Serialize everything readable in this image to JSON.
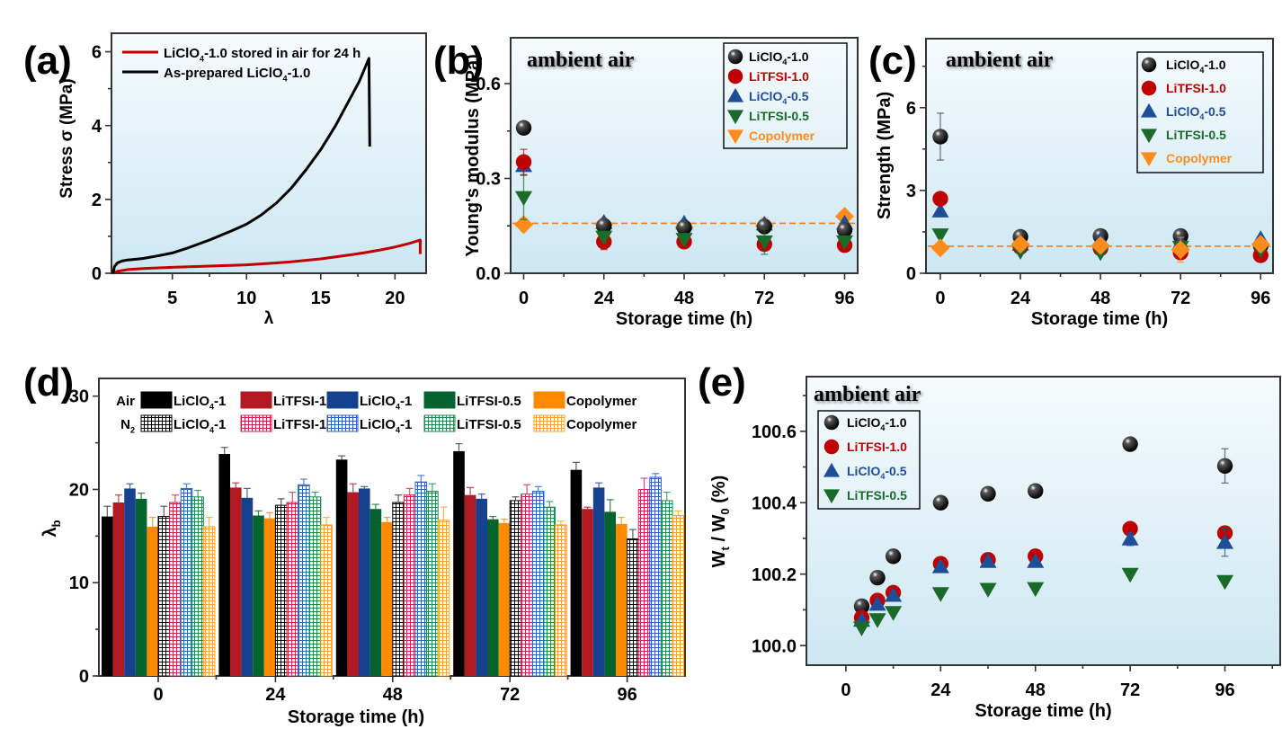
{
  "figure": {
    "panel_labels": [
      "(a)",
      "(b)",
      "(c)",
      "(d)",
      "(e)"
    ]
  },
  "colors": {
    "black": "#000000",
    "red": "#C00000",
    "blue": "#1F4E99",
    "green": "#1A6B2A",
    "orange": "#FF8C1A",
    "bar_red": "#B11A22",
    "bar_blue": "#15418F",
    "bar_green": "#05632F",
    "bar_orange": "#FF8A00",
    "bar_n2_red": "#D6204F",
    "bar_n2_blue": "#2C63C0",
    "bar_n2_green": "#1E8A4E",
    "bar_n2_orange": "#FFA028",
    "bg_top": "#F6FBFD",
    "bg_bottom": "#CDE7F2"
  },
  "chart_data": [
    {
      "panel": "(a)",
      "type": "line",
      "title": "",
      "xlabel": "λ",
      "ylabel": "Stress σ (MPa)",
      "xlim": [
        0.9,
        22.1
      ],
      "ylim": [
        0,
        6.5
      ],
      "xticks": [
        5,
        10,
        15,
        20
      ],
      "yticks": [
        0,
        2,
        4,
        6
      ],
      "legend_position": "top-left",
      "series": [
        {
          "name": "LiClO₄-1.0 stored in air for 24 h",
          "color": "#C00000",
          "x": [
            1.0,
            1.3,
            2.0,
            3.0,
            5.0,
            8.0,
            10.0,
            12.0,
            13.0,
            15.0,
            17.0,
            18.0,
            19.0,
            20.0,
            21.0,
            21.7,
            21.7
          ],
          "y": [
            0.0,
            0.05,
            0.1,
            0.13,
            0.16,
            0.2,
            0.23,
            0.28,
            0.31,
            0.39,
            0.5,
            0.56,
            0.63,
            0.71,
            0.81,
            0.9,
            0.52
          ]
        },
        {
          "name": "As-prepared LiClO₄-1.0",
          "color": "#000000",
          "x": [
            1.0,
            1.1,
            1.3,
            1.6,
            2.0,
            3.0,
            4.0,
            5.0,
            6.0,
            7.5,
            9.0,
            10.0,
            11.0,
            12.0,
            13.0,
            14.0,
            15.0,
            16.0,
            17.0,
            17.6,
            18.25,
            18.3
          ],
          "y": [
            0.0,
            0.18,
            0.28,
            0.33,
            0.36,
            0.4,
            0.47,
            0.55,
            0.68,
            0.9,
            1.15,
            1.33,
            1.58,
            1.9,
            2.3,
            2.8,
            3.35,
            4.0,
            4.75,
            5.2,
            5.82,
            3.43
          ]
        }
      ]
    },
    {
      "panel": "(b)",
      "type": "scatter",
      "annotation": "ambient air",
      "xlabel": "Storage time (h)",
      "ylabel": "Young's modulus (MPa)",
      "xlim": [
        -3.9,
        99.9
      ],
      "ylim": [
        0,
        0.745
      ],
      "xticks": [
        0,
        24,
        48,
        72,
        96
      ],
      "yticks": [
        0.0,
        0.3,
        0.6
      ],
      "ytick_labels": [
        "0.0",
        "0.3",
        "0.6"
      ],
      "reference_line": 0.158,
      "legend_position": "top-right",
      "x": [
        0,
        24,
        48,
        72,
        96
      ],
      "series": [
        {
          "name": "LiClO₄-1.0",
          "marker": "sphere",
          "color": "#000000",
          "values": [
            0.46,
            0.15,
            0.145,
            0.148,
            0.137
          ],
          "err": [
            0.01,
            0.01,
            0.01,
            0.01,
            0.01
          ]
        },
        {
          "name": "LiTFSI-1.0",
          "marker": "circle",
          "color": "#C00000",
          "values": [
            0.352,
            0.1,
            0.1,
            0.092,
            0.089
          ],
          "err": [
            0.04,
            0.025,
            0.02,
            0.01,
            0.01
          ]
        },
        {
          "name": "LiClO₄-0.5",
          "marker": "triangle-up",
          "color": "#1F4E99",
          "values": [
            0.34,
            0.16,
            0.158,
            0.155,
            0.158
          ],
          "err": [
            0.03,
            0.01,
            0.01,
            0.01,
            0.01
          ]
        },
        {
          "name": "LiTFSI-0.5",
          "marker": "triangle-down",
          "color": "#1A6B2A",
          "values": [
            0.24,
            0.115,
            0.108,
            0.1,
            0.1
          ],
          "err": [
            0.07,
            0.01,
            0.01,
            0.04,
            0.01
          ]
        },
        {
          "name": "Copolymer",
          "marker": "diamond",
          "legend_marker": "triangle-down",
          "color": "#FF8C1A",
          "values": [
            0.154,
            0.155,
            0.145,
            0.15,
            0.18
          ],
          "err": [
            0.02,
            0.01,
            0.01,
            0.025,
            0.01
          ]
        }
      ]
    },
    {
      "panel": "(c)",
      "type": "scatter",
      "annotation": "ambient air",
      "xlabel": "Storage time (h)",
      "ylabel": "Strength (MPa)",
      "xlim": [
        -4.3,
        99.7
      ],
      "ylim": [
        0,
        8.5
      ],
      "xticks": [
        0,
        24,
        48,
        72,
        96
      ],
      "yticks": [
        0,
        3,
        6
      ],
      "ytick_labels": [
        "0",
        "3",
        "6"
      ],
      "reference_line": 0.98,
      "legend_position": "top-right",
      "x": [
        0,
        24,
        48,
        72,
        96
      ],
      "series": [
        {
          "name": "LiClO₄-1.0",
          "marker": "sphere",
          "color": "#000000",
          "values": [
            4.95,
            1.32,
            1.35,
            1.35,
            1.0
          ],
          "err": [
            0.85,
            0.05,
            0.05,
            0.05,
            0.05
          ]
        },
        {
          "name": "LiTFSI-1.0",
          "marker": "circle",
          "color": "#C00000",
          "values": [
            2.7,
            0.95,
            0.9,
            0.75,
            0.65
          ],
          "err": [
            0.05,
            0.05,
            0.05,
            0.1,
            0.05
          ]
        },
        {
          "name": "LiClO₄-0.5",
          "marker": "triangle-up",
          "color": "#1F4E99",
          "values": [
            2.25,
            1.05,
            1.2,
            1.1,
            1.25
          ],
          "err": [
            0.05,
            0.05,
            0.05,
            0.1,
            0.05
          ]
        },
        {
          "name": "LiTFSI-0.5",
          "marker": "triangle-down",
          "color": "#1A6B2A",
          "values": [
            1.4,
            0.8,
            0.75,
            0.95,
            0.85
          ],
          "err": [
            0.05,
            0.05,
            0.05,
            0.1,
            0.05
          ]
        },
        {
          "name": "Copolymer",
          "marker": "diamond",
          "legend_marker": "triangle-down",
          "color": "#FF8C1A",
          "values": [
            0.92,
            1.05,
            1.0,
            0.85,
            1.05
          ],
          "err": [
            0.05,
            0.1,
            0.1,
            0.45,
            0.1
          ]
        }
      ]
    },
    {
      "panel": "(d)",
      "type": "bar",
      "xlabel": "Storage time (h)",
      "ylabel": "λb",
      "ylim": [
        0,
        31.9
      ],
      "yticks": [
        0,
        10,
        20,
        30
      ],
      "categories": [
        "0",
        "24",
        "48",
        "72",
        "96"
      ],
      "legend_position": "top",
      "legend_rows": [
        {
          "label": "Air",
          "items": [
            "LiClO₄-1",
            "LiTFSI-1",
            "LiClO₄-1",
            "LiTFSI-0.5",
            "Copolymer"
          ]
        },
        {
          "label": "N₂",
          "items": [
            "LiClO₄-1",
            "LiTFSI-1",
            "LiClO₄-1",
            "LiTFSI-0.5",
            "Copolymer"
          ]
        }
      ],
      "series": [
        {
          "name": "Air LiClO₄-1",
          "pattern": "solid",
          "color": "#000000",
          "values": [
            17.1,
            23.8,
            23.2,
            24.1,
            22.1
          ],
          "err": [
            1.1,
            0.7,
            0.4,
            0.8,
            0.8
          ]
        },
        {
          "name": "Air LiTFSI-1",
          "pattern": "solid",
          "color": "#B11A22",
          "values": [
            18.6,
            20.2,
            19.7,
            19.4,
            17.9
          ],
          "err": [
            0.8,
            0.5,
            0.9,
            0.8,
            0.2
          ]
        },
        {
          "name": "Air LiClO₄-0.5",
          "pattern": "solid",
          "color": "#15418F",
          "values": [
            20.1,
            19.1,
            20.1,
            19.0,
            20.2
          ],
          "err": [
            0.5,
            1.0,
            0.2,
            0.5,
            0.5
          ]
        },
        {
          "name": "Air LiTFSI-0.5",
          "pattern": "solid",
          "color": "#05632F",
          "values": [
            19.0,
            17.2,
            17.9,
            16.8,
            17.6
          ],
          "err": [
            0.6,
            0.5,
            0.5,
            0.3,
            1.3
          ]
        },
        {
          "name": "Air Copolymer",
          "pattern": "solid",
          "color": "#FF8A00",
          "values": [
            16.0,
            16.9,
            16.5,
            16.4,
            16.3
          ],
          "err": [
            1.0,
            0.6,
            0.5,
            0.4,
            0.7
          ]
        },
        {
          "name": "N₂ LiClO₄-1",
          "pattern": "grid",
          "color": "#000000",
          "values": [
            17.1,
            18.3,
            18.6,
            18.8,
            14.7
          ],
          "err": [
            1.1,
            0.7,
            0.8,
            0.4,
            1.0
          ]
        },
        {
          "name": "N₂ LiTFSI-1",
          "pattern": "grid",
          "color": "#D6204F",
          "values": [
            18.6,
            18.6,
            19.4,
            19.5,
            20.0
          ],
          "err": [
            0.8,
            1.1,
            0.7,
            1.0,
            1.2
          ]
        },
        {
          "name": "N₂ LiClO₄-0.5",
          "pattern": "grid",
          "color": "#2C63C0",
          "values": [
            20.1,
            20.5,
            20.8,
            19.8,
            21.3
          ],
          "err": [
            0.5,
            0.6,
            0.7,
            0.5,
            0.4
          ]
        },
        {
          "name": "N₂ LiTFSI-0.5",
          "pattern": "grid",
          "color": "#1E8A4E",
          "values": [
            19.2,
            19.2,
            19.8,
            18.1,
            18.8
          ],
          "err": [
            0.7,
            0.5,
            0.8,
            0.6,
            0.9
          ]
        },
        {
          "name": "N₂ Copolymer",
          "pattern": "grid",
          "color": "#FFA028",
          "values": [
            16.0,
            16.2,
            16.7,
            16.2,
            17.2
          ],
          "err": [
            1.0,
            0.8,
            1.4,
            0.4,
            0.5
          ]
        }
      ]
    },
    {
      "panel": "(e)",
      "type": "scatter",
      "annotation": "ambient air",
      "xlabel": "Storage time (h)",
      "ylabel": "Wt / W0 (%)",
      "xlim": [
        -10,
        110
      ],
      "ylim": [
        99.945,
        100.753
      ],
      "xticks": [
        0,
        24,
        48,
        72,
        96
      ],
      "yticks": [
        100.0,
        100.2,
        100.4,
        100.6
      ],
      "ytick_labels": [
        "100.0",
        "100.2",
        "100.4",
        "100.6"
      ],
      "legend_position": "top-left",
      "x": [
        4,
        8,
        12,
        24,
        36,
        48,
        72,
        96
      ],
      "series": [
        {
          "name": "LiClO₄-1.0",
          "marker": "sphere",
          "color": "#000000",
          "values": [
            100.11,
            100.19,
            100.25,
            100.4,
            100.425,
            100.433,
            100.564,
            100.503
          ],
          "err": [
            0.005,
            0.005,
            0.005,
            0.005,
            0.01,
            0.015,
            0.01,
            0.048
          ]
        },
        {
          "name": "LiTFSI-1.0",
          "marker": "circle",
          "color": "#C00000",
          "values": [
            100.078,
            100.126,
            100.148,
            100.229,
            100.24,
            100.25,
            100.327,
            100.315
          ],
          "err": [
            0.005,
            0.005,
            0.005,
            0.005,
            0.005,
            0.005,
            0.01,
            0.01
          ]
        },
        {
          "name": "LiClO₄-0.5",
          "marker": "triangle-up",
          "color": "#1F4E99",
          "values": [
            100.07,
            100.115,
            100.14,
            100.22,
            100.235,
            100.235,
            100.298,
            100.288
          ],
          "err": [
            0.005,
            0.005,
            0.005,
            0.005,
            0.005,
            0.005,
            0.018,
            0.038
          ]
        },
        {
          "name": "LiTFSI-0.5",
          "marker": "triangle-down",
          "color": "#1A6B2A",
          "values": [
            100.05,
            100.073,
            100.093,
            100.146,
            100.158,
            100.16,
            100.2,
            100.18
          ],
          "err": [
            0.005,
            0.005,
            0.005,
            0.005,
            0.005,
            0.005,
            0.005,
            0.005
          ]
        }
      ]
    }
  ]
}
